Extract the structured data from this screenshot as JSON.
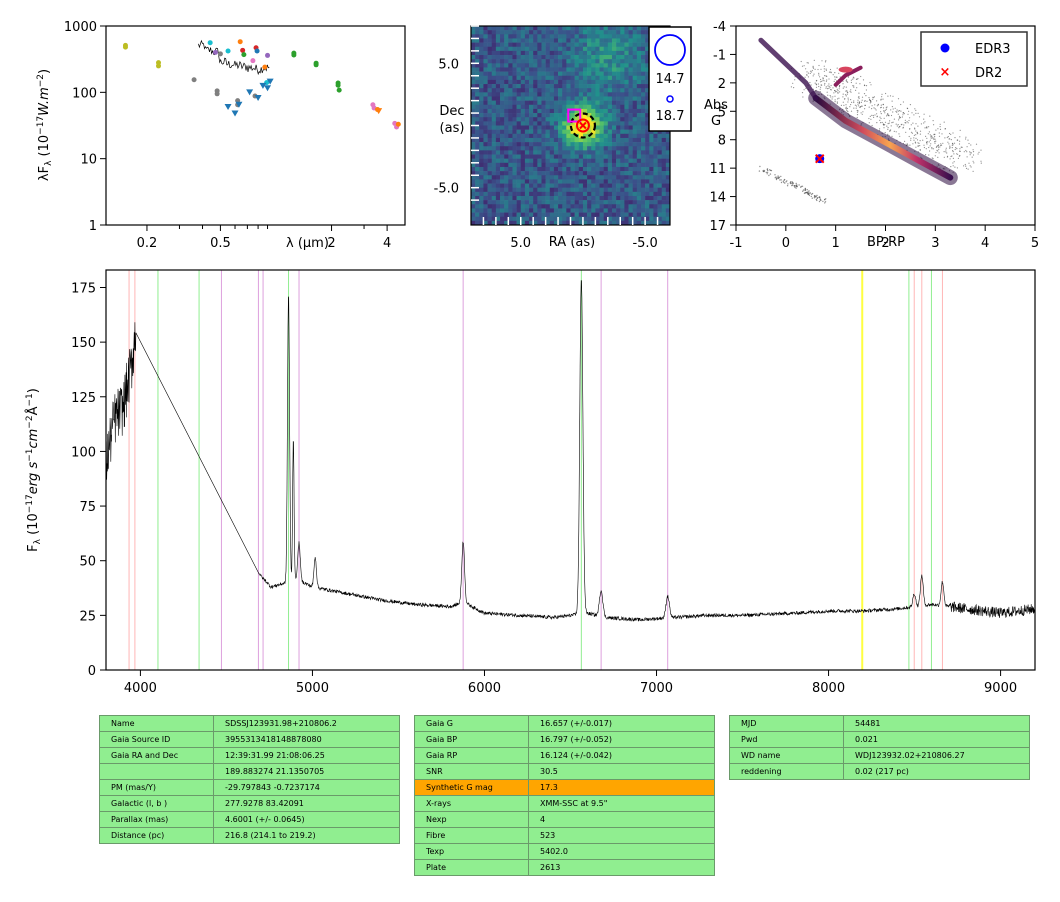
{
  "chart_data": [
    {
      "id": "sed",
      "type": "scatter",
      "xlabel": "λ (μm)",
      "ylabel": "λF_λ (10^-17 W.m^-2)",
      "xscale": "log",
      "yscale": "log",
      "xlim": [
        0.12,
        5.0
      ],
      "ylim": [
        1,
        1000
      ],
      "xticks": [
        {
          "v": 0.2,
          "label": "0.2"
        },
        {
          "v": 0.5,
          "label": "0.5"
        },
        {
          "v": 2,
          "label": "2"
        },
        {
          "v": 4,
          "label": "4"
        }
      ],
      "yticks": [
        {
          "v": 1,
          "label": "1"
        },
        {
          "v": 10,
          "label": "10"
        },
        {
          "v": 100,
          "label": "100"
        },
        {
          "v": 1000,
          "label": "1000"
        }
      ],
      "points": [
        {
          "x": 0.153,
          "y": 480,
          "c": "#bcbd22"
        },
        {
          "x": 0.153,
          "y": 510,
          "c": "#bcbd22"
        },
        {
          "x": 0.231,
          "y": 250,
          "c": "#bcbd22"
        },
        {
          "x": 0.231,
          "y": 280,
          "c": "#bcbd22"
        },
        {
          "x": 0.36,
          "y": 155,
          "c": "#7f7f7f"
        },
        {
          "x": 0.44,
          "y": 560,
          "c": "#17becf"
        },
        {
          "x": 0.47,
          "y": 400,
          "c": "#9467bd"
        },
        {
          "x": 0.48,
          "y": 105,
          "c": "#7f7f7f"
        },
        {
          "x": 0.48,
          "y": 95,
          "c": "#7f7f7f"
        },
        {
          "x": 0.5,
          "y": 380,
          "c": "#7f7f7f"
        },
        {
          "x": 0.55,
          "y": 420,
          "c": "#17becf"
        },
        {
          "x": 0.62,
          "y": 75,
          "c": "#7f7f7f"
        },
        {
          "x": 0.62,
          "y": 65,
          "c": "#7f7f7f"
        },
        {
          "x": 0.64,
          "y": 580,
          "c": "#ff7f0e"
        },
        {
          "x": 0.66,
          "y": 430,
          "c": "#d62728"
        },
        {
          "x": 0.67,
          "y": 370,
          "c": "#2ca02c"
        },
        {
          "x": 0.75,
          "y": 300,
          "c": "#e377c2"
        },
        {
          "x": 0.77,
          "y": 88,
          "c": "#7f7f7f"
        },
        {
          "x": 0.78,
          "y": 470,
          "c": "#d62728"
        },
        {
          "x": 0.79,
          "y": 420,
          "c": "#1f77b4"
        },
        {
          "x": 0.87,
          "y": 240,
          "c": "#ff7f0e"
        },
        {
          "x": 0.89,
          "y": 140,
          "c": "#17becf"
        },
        {
          "x": 0.9,
          "y": 360,
          "c": "#9467bd"
        },
        {
          "x": 1.25,
          "y": 390,
          "c": "#2ca02c"
        },
        {
          "x": 1.25,
          "y": 365,
          "c": "#2ca02c"
        },
        {
          "x": 1.65,
          "y": 275,
          "c": "#2ca02c"
        },
        {
          "x": 1.65,
          "y": 260,
          "c": "#2ca02c"
        },
        {
          "x": 2.17,
          "y": 138,
          "c": "#2ca02c"
        },
        {
          "x": 2.17,
          "y": 128,
          "c": "#2ca02c"
        },
        {
          "x": 2.2,
          "y": 108,
          "c": "#2ca02c"
        },
        {
          "x": 3.35,
          "y": 65,
          "c": "#e377c2"
        },
        {
          "x": 3.4,
          "y": 58,
          "c": "#e377c2"
        },
        {
          "x": 3.55,
          "y": 55,
          "c": "#ff7f0e"
        },
        {
          "x": 4.4,
          "y": 34,
          "c": "#e377c2"
        },
        {
          "x": 4.5,
          "y": 30,
          "c": "#e377c2"
        },
        {
          "x": 4.6,
          "y": 33,
          "c": "#ff7f0e"
        }
      ],
      "upper_limits": [
        {
          "x": 0.55,
          "y": 60,
          "c": "#1f77b4"
        },
        {
          "x": 0.6,
          "y": 48,
          "c": "#1f77b4"
        },
        {
          "x": 0.63,
          "y": 65,
          "c": "#1f77b4"
        },
        {
          "x": 0.72,
          "y": 100,
          "c": "#1f77b4"
        },
        {
          "x": 0.8,
          "y": 82,
          "c": "#1f77b4"
        },
        {
          "x": 0.85,
          "y": 125,
          "c": "#1f77b4"
        },
        {
          "x": 0.9,
          "y": 115,
          "c": "#1f77b4"
        },
        {
          "x": 0.93,
          "y": 145,
          "c": "#1f77b4"
        },
        {
          "x": 3.6,
          "y": 52,
          "c": "#ff7f0e"
        }
      ],
      "spectrum": {
        "x_start": 0.38,
        "x_end": 0.92,
        "y_levels": [
          500,
          420,
          400,
          280,
          260,
          250,
          240,
          230,
          220,
          230
        ]
      }
    },
    {
      "id": "image",
      "type": "heatmap",
      "xlabel": "RA (as)",
      "ylabel": "Dec\n(as)",
      "xticks": [
        {
          "v": 5.0,
          "label": "5.0"
        },
        {
          "v": -5.0,
          "label": "-5.0"
        }
      ],
      "yticks": [
        {
          "v": 5.0,
          "label": "5.0"
        },
        {
          "v": -5.0,
          "label": "-5.0"
        }
      ],
      "xlim": [
        9.0,
        -7.0
      ],
      "ylim": [
        -8.0,
        8.0
      ],
      "source": {
        "x": 0,
        "y": 0,
        "sigma": 1.1
      },
      "extended": {
        "x": -2.0,
        "y": 5.5,
        "sigma": 2.0
      },
      "markers": {
        "circle": {
          "x": 0,
          "y": 0,
          "color": "#000000"
        },
        "square": {
          "x": 0.7,
          "y": 0.8,
          "color": "#ff00ff"
        },
        "cross": {
          "x": 0,
          "y": 0,
          "color": "#ff0000"
        }
      },
      "legend": {
        "big_label": "14.7",
        "small_label": "18.7"
      }
    },
    {
      "id": "hrd",
      "type": "scatter",
      "xlabel": "BP-RP",
      "ylabel": "Abs\nG",
      "xlim": [
        -1,
        5
      ],
      "ylim": [
        17,
        -4
      ],
      "xticks": [
        {
          "v": -1,
          "label": "-1"
        },
        {
          "v": 0,
          "label": "0"
        },
        {
          "v": 1,
          "label": "1"
        },
        {
          "v": 2,
          "label": "2"
        },
        {
          "v": 3,
          "label": "3"
        },
        {
          "v": 4,
          "label": "4"
        },
        {
          "v": 5,
          "label": "5"
        }
      ],
      "yticks": [
        {
          "v": -4,
          "label": "-4"
        },
        {
          "v": -1,
          "label": "-1"
        },
        {
          "v": 2,
          "label": "2"
        },
        {
          "v": 5,
          "label": "5"
        },
        {
          "v": 8,
          "label": "8"
        },
        {
          "v": 11,
          "label": "11"
        },
        {
          "v": 14,
          "label": "14"
        },
        {
          "v": 17,
          "label": "17"
        }
      ],
      "target": {
        "bp_rp": 0.68,
        "absg": 10.0
      },
      "legend": [
        {
          "label": "EDR3",
          "marker": "dot",
          "color": "#0000ff"
        },
        {
          "label": "DR2",
          "marker": "x",
          "color": "#ff0000"
        }
      ]
    },
    {
      "id": "spectrum",
      "type": "line",
      "xlabel": "",
      "ylabel": "F_λ (10^-17 erg s^-1 cm^-2 Å^-1)",
      "xlim": [
        3800,
        9200
      ],
      "ylim": [
        0,
        183
      ],
      "xticks": [
        {
          "v": 4000,
          "label": "4000"
        },
        {
          "v": 5000,
          "label": "5000"
        },
        {
          "v": 6000,
          "label": "6000"
        },
        {
          "v": 7000,
          "label": "7000"
        },
        {
          "v": 8000,
          "label": "8000"
        },
        {
          "v": 9000,
          "label": "9000"
        }
      ],
      "yticks": [
        {
          "v": 0,
          "label": "0"
        },
        {
          "v": 25,
          "label": "25"
        },
        {
          "v": 50,
          "label": "50"
        },
        {
          "v": 75,
          "label": "75"
        },
        {
          "v": 100,
          "label": "100"
        },
        {
          "v": 125,
          "label": "125"
        },
        {
          "v": 150,
          "label": "150"
        },
        {
          "v": 175,
          "label": "175"
        }
      ],
      "continuum": [
        [
          3800,
          95
        ],
        [
          3850,
          115
        ],
        [
          3900,
          120
        ],
        [
          3950,
          140
        ],
        [
          3970,
          154
        ],
        [
          4700,
          43
        ],
        [
          4760,
          38
        ],
        [
          4850,
          40
        ],
        [
          4900,
          42
        ],
        [
          5000,
          38
        ],
        [
          5200,
          35
        ],
        [
          5400,
          32
        ],
        [
          5600,
          30
        ],
        [
          5800,
          29
        ],
        [
          5880,
          31
        ],
        [
          6000,
          26
        ],
        [
          6200,
          25
        ],
        [
          6400,
          24
        ],
        [
          6500,
          25
        ],
        [
          6600,
          26
        ],
        [
          6700,
          24
        ],
        [
          6900,
          23
        ],
        [
          7100,
          24
        ],
        [
          7300,
          25
        ],
        [
          7500,
          25
        ],
        [
          7800,
          26
        ],
        [
          8000,
          27
        ],
        [
          8200,
          27
        ],
        [
          8400,
          28
        ],
        [
          8600,
          30
        ],
        [
          8800,
          28
        ],
        [
          9000,
          26
        ],
        [
          9200,
          28
        ]
      ],
      "emission_lines": [
        {
          "center": 4861,
          "amp": 132,
          "width": 6
        },
        {
          "center": 4889,
          "amp": 65,
          "width": 4
        },
        {
          "center": 4922,
          "amp": 17,
          "width": 7
        },
        {
          "center": 5016,
          "amp": 14,
          "width": 7
        },
        {
          "center": 5876,
          "amp": 28,
          "width": 8
        },
        {
          "center": 6563,
          "amp": 153,
          "width": 9
        },
        {
          "center": 6678,
          "amp": 12,
          "width": 10
        },
        {
          "center": 7065,
          "amp": 10,
          "width": 10
        },
        {
          "center": 8498,
          "amp": 6,
          "width": 8
        },
        {
          "center": 8542,
          "amp": 14,
          "width": 8
        },
        {
          "center": 8662,
          "amp": 11,
          "width": 8
        }
      ],
      "vlines": [
        {
          "x": 3934,
          "c": "#ffb6b6"
        },
        {
          "x": 3968,
          "c": "#ffb6b6"
        },
        {
          "x": 4102,
          "c": "#90ee90"
        },
        {
          "x": 4341,
          "c": "#90ee90"
        },
        {
          "x": 4471,
          "c": "#dda0dd"
        },
        {
          "x": 4686,
          "c": "#dda0dd"
        },
        {
          "x": 4713,
          "c": "#dda0dd"
        },
        {
          "x": 4861,
          "c": "#90ee90"
        },
        {
          "x": 4922,
          "c": "#dda0dd"
        },
        {
          "x": 5876,
          "c": "#dda0dd"
        },
        {
          "x": 6563,
          "c": "#90ee90"
        },
        {
          "x": 6678,
          "c": "#dda0dd"
        },
        {
          "x": 7065,
          "c": "#dda0dd"
        },
        {
          "x": 8467,
          "c": "#90ee90"
        },
        {
          "x": 8498,
          "c": "#ffb6b6"
        },
        {
          "x": 8542,
          "c": "#ffb6b6"
        },
        {
          "x": 8598,
          "c": "#90ee90"
        },
        {
          "x": 8662,
          "c": "#ffb6b6"
        }
      ],
      "highlight_band": [
        8190,
        8200
      ]
    }
  ],
  "tables": {
    "identity": [
      [
        "Name",
        "SDSSJ123931.98+210806.2"
      ],
      [
        "Gaia Source ID",
        "3955313418148878080"
      ],
      [
        "Gaia RA and Dec",
        "12:39:31.99    21:08:06.25"
      ],
      [
        "",
        "189.883274    21.1350705"
      ],
      [
        "PM (mas/Y)",
        "-29.797843    -0.7237174"
      ],
      [
        "Galactic (l, b )",
        "277.9278    83.42091"
      ],
      [
        "Parallax (mas)",
        "4.6001 (+/- 0.0645)"
      ],
      [
        "Distance (pc)",
        "216.8 (214.1 to 219.2)"
      ]
    ],
    "photometry": [
      [
        "Gaia G",
        "16.657 (+/-0.017)"
      ],
      [
        "Gaia BP",
        "16.797 (+/-0.052)"
      ],
      [
        "Gaia RP",
        "16.124 (+/-0.042)"
      ],
      [
        "SNR",
        "30.5"
      ],
      [
        "Synthetic G mag",
        "17.3"
      ],
      [
        "X-rays",
        "XMM-SSC at 9.5\""
      ],
      [
        "Nexp",
        "4"
      ],
      [
        "Fibre",
        "523"
      ],
      [
        "Texp",
        "5402.0"
      ],
      [
        "Plate",
        "2613"
      ]
    ],
    "photometry_highlight_row": 4,
    "observation": [
      [
        "MJD",
        "54481"
      ],
      [
        "Pwd",
        "0.021"
      ],
      [
        "WD name",
        "WDJ123932.02+210806.27"
      ],
      [
        "reddening",
        "0.02 (217 pc)"
      ]
    ]
  },
  "colors": {
    "table_bg": "#90ee90",
    "table_highlight": "#ffa500",
    "axis": "#000000"
  }
}
